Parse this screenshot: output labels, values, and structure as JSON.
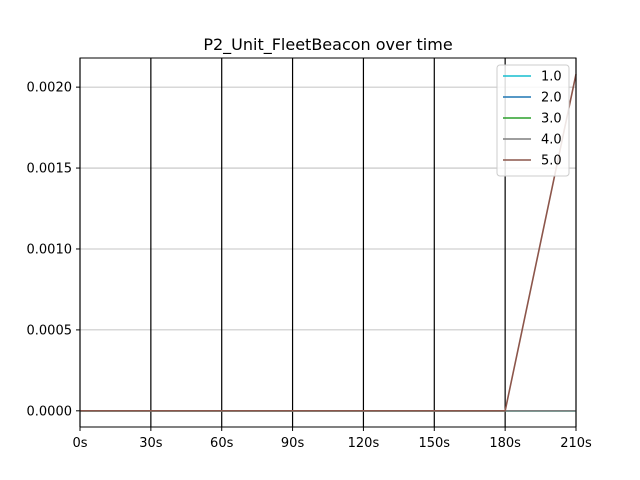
{
  "chart_data": {
    "type": "line",
    "title": "P2_Unit_FleetBeacon over time",
    "xlabel": "",
    "ylabel": "",
    "x": [
      0,
      30,
      60,
      90,
      120,
      150,
      180,
      210
    ],
    "x_tick_values": [
      0,
      30,
      60,
      90,
      120,
      150,
      180,
      210
    ],
    "x_tick_labels": [
      "0s",
      "30s",
      "60s",
      "90s",
      "120s",
      "150s",
      "180s",
      "210s"
    ],
    "y_tick_values": [
      0,
      0.0005,
      0.001,
      0.0015,
      0.002
    ],
    "y_tick_labels": [
      "0.0000",
      "0.0005",
      "0.0010",
      "0.0015",
      "0.0020"
    ],
    "xlim": [
      0,
      210
    ],
    "ylim": [
      -0.0001,
      0.00218
    ],
    "grid": {
      "x": "black vertical lines",
      "y": "gray horizontal lines"
    },
    "legend_position": "top-right",
    "series": [
      {
        "name": "1.0",
        "color": "#17becf",
        "values": [
          0,
          0,
          0,
          0,
          0,
          0,
          0,
          0
        ]
      },
      {
        "name": "2.0",
        "color": "#1f77b4",
        "values": [
          0,
          0,
          0,
          0,
          0,
          0,
          0,
          0
        ]
      },
      {
        "name": "3.0",
        "color": "#2ca02c",
        "values": [
          0,
          0,
          0,
          0,
          0,
          0,
          0,
          0
        ]
      },
      {
        "name": "4.0",
        "color": "#7f7f7f",
        "values": [
          0,
          0,
          0,
          0,
          0,
          0,
          0,
          0
        ]
      },
      {
        "name": "5.0",
        "color": "#8c564b",
        "values": [
          0,
          0,
          0,
          0,
          0,
          0,
          0,
          0.00208
        ]
      }
    ]
  }
}
